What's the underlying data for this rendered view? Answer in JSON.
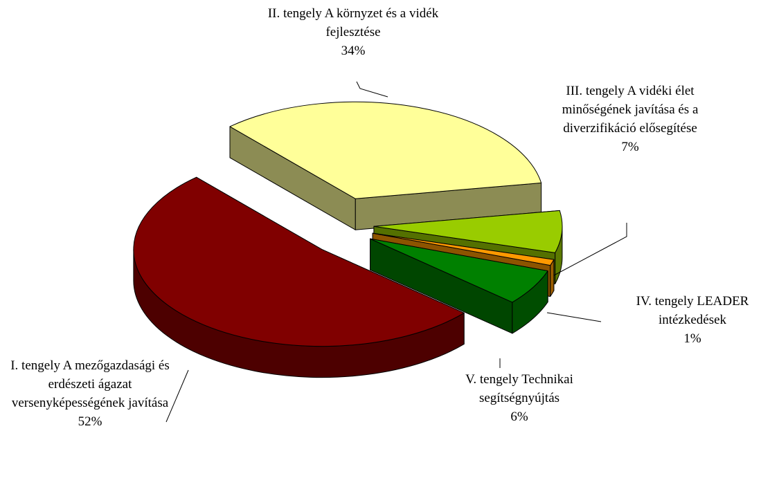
{
  "chart_data": {
    "type": "pie",
    "categories": [
      "I. tengely A mezőgazdasági és erdészeti ágazat versenyképességének javítása",
      "II. tengely A környzet és a vidék fejlesztése",
      "III. tengely A vidéki élet minőségének javítása és a diverzifikáció elősegítése",
      "IV. tengely LEADER intézkedések",
      "V. tengely Technikai segítségnyújtás"
    ],
    "values": [
      52,
      34,
      7,
      1,
      6
    ],
    "value_labels": [
      "52%",
      "34%",
      "7%",
      "1%",
      "6%"
    ],
    "colors": [
      "#800000",
      "#ffff99",
      "#99cc00",
      "#ff9900",
      "#008000"
    ]
  }
}
